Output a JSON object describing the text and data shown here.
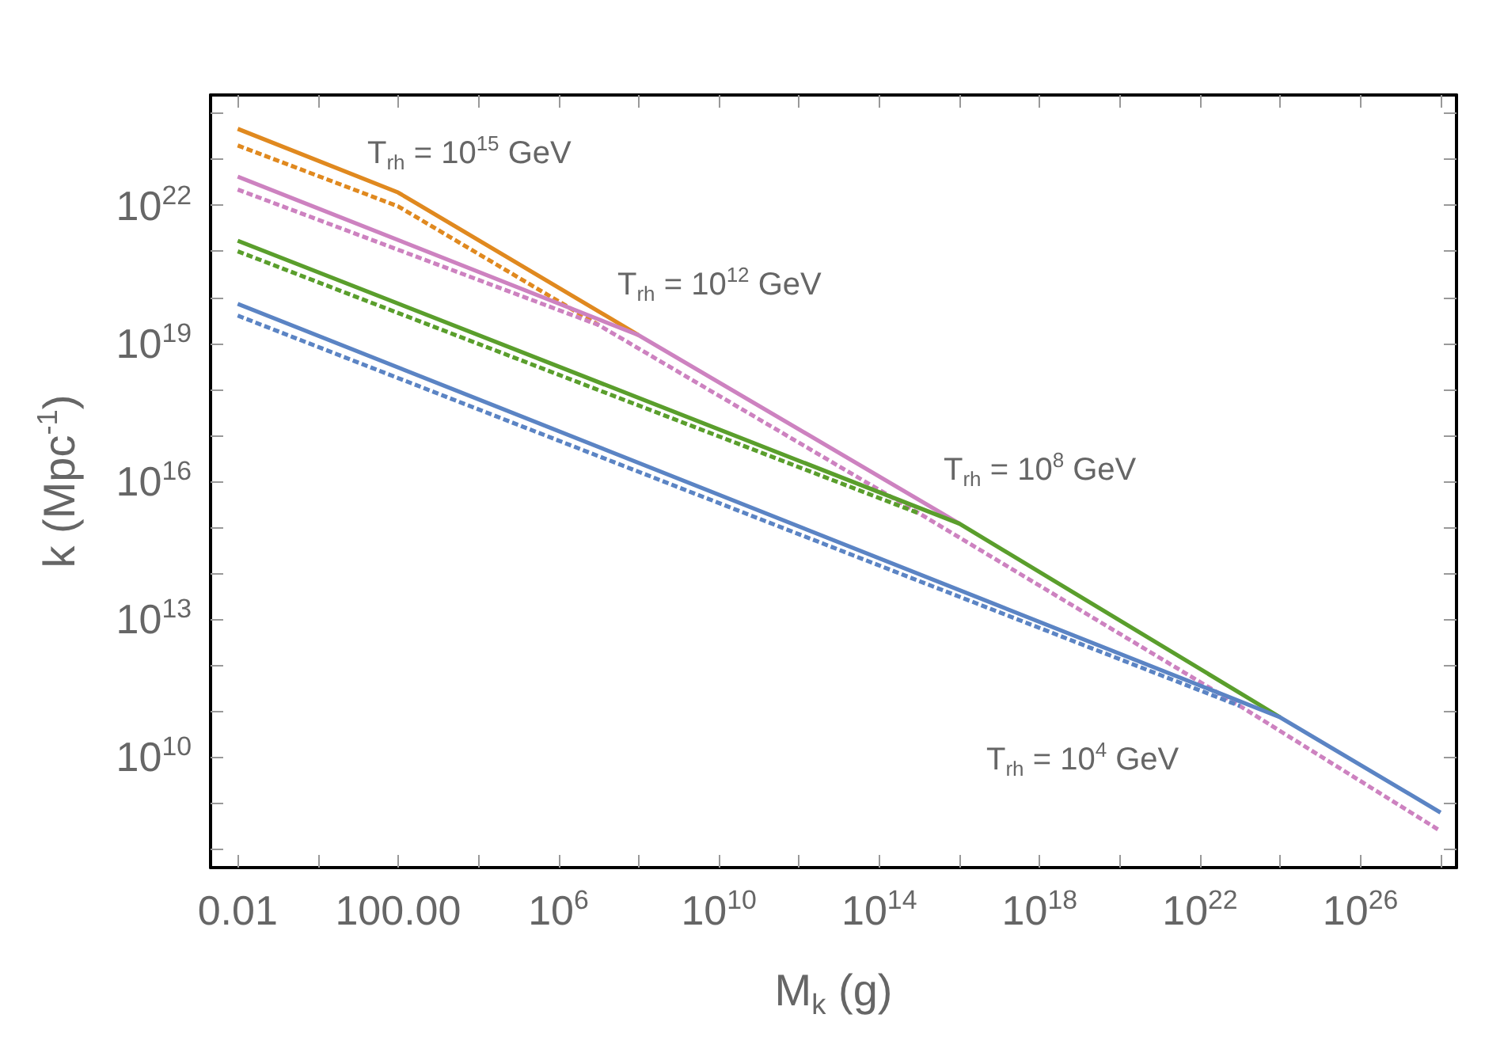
{
  "chart_data": {
    "type": "line",
    "xlabel": "M$_{k}$ (g)",
    "ylabel": "k (Mpc$^{-1}$)",
    "log": "xy",
    "grid": false,
    "marker": "none",
    "xlim": [
      0.0021,
      2.5e+28
    ],
    "ylim": [
      40000000.0,
      2.5e+24
    ],
    "xticks": [
      {
        "value": 0.01,
        "label": "0.01"
      },
      {
        "value": 1,
        "label": null
      },
      {
        "value": 100,
        "label": "100.00"
      },
      {
        "value": 10000.0,
        "label": null
      },
      {
        "value": 1000000.0,
        "label": "10$^{6}$"
      },
      {
        "value": 100000000.0,
        "label": null
      },
      {
        "value": 10000000000.0,
        "label": "10$^{10}$"
      },
      {
        "value": 1000000000000.0,
        "label": null
      },
      {
        "value": 100000000000000.0,
        "label": "10$^{14}$"
      },
      {
        "value": 1e+16,
        "label": null
      },
      {
        "value": 1e+18,
        "label": "10$^{18}$"
      },
      {
        "value": 1e+20,
        "label": null
      },
      {
        "value": 1e+22,
        "label": "10$^{22}$"
      },
      {
        "value": 1e+24,
        "label": null
      },
      {
        "value": 1e+26,
        "label": "10$^{26}$"
      },
      {
        "value": 1e+28,
        "label": null
      }
    ],
    "yticks": [
      {
        "value": 100000000.0,
        "label": null
      },
      {
        "value": 1000000000.0,
        "label": null
      },
      {
        "value": 10000000000.0,
        "label": "10$^{10}$"
      },
      {
        "value": 100000000000.0,
        "label": null
      },
      {
        "value": 1000000000000.0,
        "label": null
      },
      {
        "value": 10000000000000.0,
        "label": "10$^{13}$"
      },
      {
        "value": 100000000000000.0,
        "label": null
      },
      {
        "value": 1000000000000000.0,
        "label": null
      },
      {
        "value": 1e+16,
        "label": "10$^{16}$"
      },
      {
        "value": 1e+17,
        "label": null
      },
      {
        "value": 1e+18,
        "label": null
      },
      {
        "value": 1e+19,
        "label": "10$^{19}$"
      },
      {
        "value": 1e+20,
        "label": null
      },
      {
        "value": 1e+21,
        "label": null
      },
      {
        "value": 1e+22,
        "label": "10$^{22}$"
      },
      {
        "value": 1e+23,
        "label": null
      },
      {
        "value": 1e+24,
        "label": null
      }
    ],
    "series": [
      {
        "color": "#e0891f",
        "line_style": "dashed",
        "x": [
          0.01,
          100,
          10000000.0
        ],
        "values": [
          2e+23,
          9.5e+21,
          2.5e+19
        ]
      },
      {
        "color": "#cd82c0",
        "line_style": "dashed",
        "x": [
          0.01,
          10000000.0,
          1000000000000000.0,
          1e+23,
          1e+28
        ],
        "values": [
          2.2e+22,
          2.5e+19,
          2000000000000000.0,
          130000000000.0,
          250000000.0
        ]
      },
      {
        "color": "#5a9e2c",
        "line_style": "dashed",
        "x": [
          0.01,
          1000000000000000.0
        ],
        "values": [
          1e+21,
          2000000000000000.0
        ]
      },
      {
        "color": "#5b84c4",
        "line_style": "dashed",
        "x": [
          0.01,
          1e+23
        ],
        "values": [
          4e+19,
          130000000000.0
        ]
      },
      {
        "color": "#e0891f",
        "line_style": "solid",
        "x": [
          0.01,
          100,
          100000000.0
        ],
        "values": [
          4.6e+23,
          1.9e+22,
          1.5e+19
        ]
      },
      {
        "color": "#cd82c0",
        "line_style": "solid",
        "x": [
          0.01,
          100000000.0,
          1e+16
        ],
        "values": [
          4.2e+22,
          1.5e+19,
          1200000000000000.0
        ]
      },
      {
        "color": "#5a9e2c",
        "line_style": "solid",
        "x": [
          0.01,
          1e+16,
          1e+24
        ],
        "values": [
          1.7e+21,
          1200000000000000.0,
          74000000000.0
        ]
      },
      {
        "color": "#5b84c4",
        "line_style": "solid",
        "x": [
          0.01,
          1e+24,
          1e+28
        ],
        "values": [
          7.2e+19,
          74000000000.0,
          630000000.0
        ]
      }
    ],
    "annotations": [
      "T$_{rh}$ = 10$^{15}$ GeV",
      "T$_{rh}$ = 10$^{12}$ GeV",
      "T$_{rh}$ = 10$^{8}$ GeV",
      "T$_{rh}$ = 10$^{4}$ GeV"
    ]
  }
}
